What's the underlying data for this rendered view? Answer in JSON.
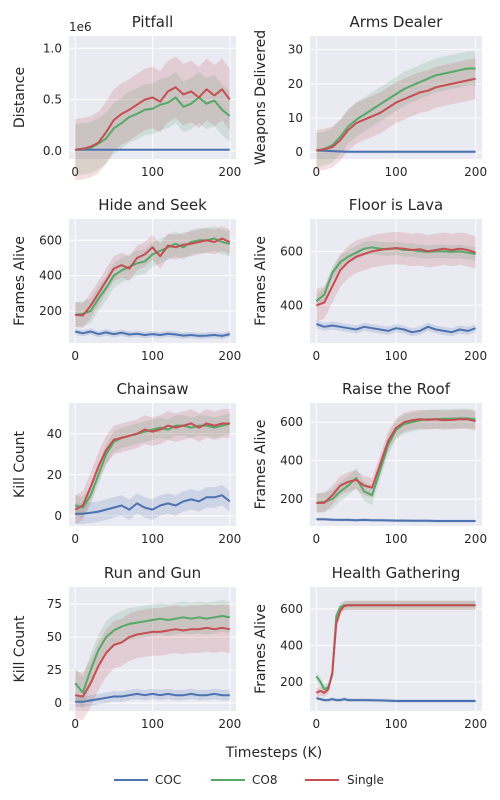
{
  "colors": {
    "COC": "#4c72b0",
    "CO8": "#55a868",
    "Single": "#c44e52",
    "panel_bg": "#eaeaf2",
    "grid": "#ffffff"
  },
  "xlabel": "Timesteps (K)",
  "legend": {
    "placement": "bottom-center",
    "entries": [
      "COC",
      "CO8",
      "Single"
    ]
  },
  "chart_data": [
    {
      "type": "line",
      "title": "Pitfall",
      "ylabel": "Distance",
      "y_scale_label": "1e6",
      "xlim": [
        -8,
        208
      ],
      "ylim": [
        -0.08,
        1.12
      ],
      "xticks": [
        0,
        100,
        200
      ],
      "yticks": [
        0.0,
        0.5,
        1.0
      ],
      "ytick_labels": [
        "0.0",
        "0.5",
        "1.0"
      ],
      "x": [
        0,
        10,
        20,
        30,
        40,
        50,
        60,
        70,
        80,
        90,
        100,
        110,
        120,
        130,
        140,
        150,
        160,
        170,
        180,
        190,
        200
      ],
      "series": [
        {
          "name": "COC",
          "values": [
            0.01,
            0.01,
            0.01,
            0.01,
            0.01,
            0.01,
            0.01,
            0.01,
            0.01,
            0.01,
            0.01,
            0.01,
            0.01,
            0.01,
            0.01,
            0.01,
            0.01,
            0.01,
            0.01,
            0.01,
            0.01
          ],
          "spread": 0.01
        },
        {
          "name": "CO8",
          "values": [
            0.01,
            0.02,
            0.03,
            0.07,
            0.12,
            0.22,
            0.27,
            0.33,
            0.36,
            0.4,
            0.41,
            0.45,
            0.47,
            0.52,
            0.43,
            0.46,
            0.52,
            0.46,
            0.49,
            0.4,
            0.34
          ],
          "spread": 0.25
        },
        {
          "name": "Single",
          "values": [
            0.01,
            0.02,
            0.04,
            0.08,
            0.18,
            0.3,
            0.36,
            0.4,
            0.45,
            0.5,
            0.52,
            0.48,
            0.58,
            0.62,
            0.55,
            0.58,
            0.52,
            0.6,
            0.54,
            0.6,
            0.5
          ],
          "spread": 0.3
        }
      ]
    },
    {
      "type": "line",
      "title": "Arms Dealer",
      "ylabel": "Weapons Delivered",
      "xlim": [
        -8,
        208
      ],
      "ylim": [
        -2,
        34
      ],
      "xticks": [
        0,
        100,
        200
      ],
      "yticks": [
        0,
        10,
        20,
        30
      ],
      "ytick_labels": [
        "0",
        "10",
        "20",
        "30"
      ],
      "x": [
        0,
        10,
        20,
        30,
        40,
        50,
        60,
        70,
        80,
        90,
        100,
        110,
        120,
        130,
        140,
        150,
        160,
        170,
        180,
        190,
        200
      ],
      "series": [
        {
          "name": "COC",
          "values": [
            0.5,
            0.4,
            0.3,
            0.2,
            0.1,
            0.1,
            0.1,
            0.1,
            0.1,
            0.1,
            0.1,
            0.1,
            0.1,
            0.1,
            0.1,
            0.1,
            0.1,
            0.1,
            0.1,
            0.1,
            0.1
          ],
          "spread": 0.4
        },
        {
          "name": "CO8",
          "values": [
            0.5,
            1.0,
            2.0,
            4.5,
            7.5,
            9.5,
            11.0,
            12.5,
            14.0,
            15.5,
            17.0,
            18.5,
            19.5,
            20.5,
            21.5,
            22.5,
            23.0,
            23.5,
            24.0,
            24.5,
            24.5
          ],
          "spread": 5
        },
        {
          "name": "Single",
          "values": [
            0.5,
            0.8,
            1.5,
            3.5,
            6.5,
            8.5,
            9.5,
            10.5,
            11.5,
            13.0,
            14.5,
            15.5,
            16.5,
            17.5,
            18.0,
            19.0,
            19.5,
            20.0,
            20.5,
            21.0,
            21.5
          ],
          "spread": 6
        }
      ]
    },
    {
      "type": "line",
      "title": "Hide and Seek",
      "ylabel": "Frames Alive",
      "xlim": [
        -8,
        208
      ],
      "ylim": [
        20,
        720
      ],
      "xticks": [
        0,
        100,
        200
      ],
      "yticks": [
        200,
        400,
        600
      ],
      "ytick_labels": [
        "200",
        "400",
        "600"
      ],
      "x": [
        0,
        10,
        20,
        30,
        40,
        50,
        60,
        70,
        80,
        90,
        100,
        110,
        120,
        130,
        140,
        150,
        160,
        170,
        180,
        190,
        200
      ],
      "series": [
        {
          "name": "COC",
          "values": [
            85,
            75,
            85,
            70,
            80,
            70,
            78,
            68,
            72,
            65,
            70,
            65,
            72,
            68,
            62,
            65,
            60,
            62,
            65,
            60,
            70
          ],
          "spread": 18
        },
        {
          "name": "CO8",
          "values": [
            180,
            185,
            200,
            270,
            330,
            400,
            430,
            450,
            470,
            480,
            520,
            540,
            560,
            580,
            560,
            590,
            600,
            600,
            610,
            590,
            580
          ],
          "spread": 70
        },
        {
          "name": "Single",
          "values": [
            180,
            175,
            230,
            300,
            370,
            440,
            460,
            440,
            500,
            520,
            560,
            510,
            570,
            560,
            575,
            580,
            590,
            600,
            590,
            610,
            590
          ],
          "spread": 70
        }
      ]
    },
    {
      "type": "line",
      "title": "Floor is Lava",
      "ylabel": "Frames Alive",
      "xlim": [
        -8,
        208
      ],
      "ylim": [
        260,
        720
      ],
      "xticks": [
        0,
        100,
        200
      ],
      "yticks": [
        400,
        600
      ],
      "ytick_labels": [
        "400",
        "600"
      ],
      "x": [
        0,
        10,
        20,
        30,
        40,
        50,
        60,
        70,
        80,
        90,
        100,
        110,
        120,
        130,
        140,
        150,
        160,
        170,
        180,
        190,
        200
      ],
      "series": [
        {
          "name": "COC",
          "values": [
            330,
            320,
            325,
            320,
            315,
            310,
            320,
            315,
            310,
            305,
            315,
            310,
            300,
            305,
            320,
            310,
            305,
            300,
            310,
            305,
            315
          ],
          "spread": 15
        },
        {
          "name": "CO8",
          "values": [
            415,
            440,
            520,
            560,
            580,
            595,
            610,
            615,
            610,
            608,
            612,
            605,
            605,
            600,
            598,
            600,
            600,
            598,
            600,
            595,
            590
          ],
          "spread": 25
        },
        {
          "name": "Single",
          "values": [
            400,
            410,
            470,
            530,
            560,
            580,
            590,
            600,
            605,
            610,
            612,
            610,
            605,
            608,
            600,
            605,
            610,
            605,
            610,
            605,
            595
          ],
          "spread": 60
        }
      ]
    },
    {
      "type": "line",
      "title": "Chainsaw",
      "ylabel": "Kill Count",
      "xlim": [
        -8,
        208
      ],
      "ylim": [
        -5,
        55
      ],
      "xticks": [
        0,
        100,
        200
      ],
      "yticks": [
        0,
        20,
        40
      ],
      "ytick_labels": [
        "0",
        "20",
        "40"
      ],
      "x": [
        0,
        10,
        20,
        30,
        40,
        50,
        60,
        70,
        80,
        90,
        100,
        110,
        120,
        130,
        140,
        150,
        160,
        170,
        180,
        190,
        200
      ],
      "series": [
        {
          "name": "COC",
          "values": [
            1,
            1,
            1.5,
            2,
            3,
            4,
            5,
            3,
            6,
            4,
            3,
            5,
            6,
            5,
            7,
            8,
            7,
            9,
            9,
            10,
            7
          ],
          "spread": 5
        },
        {
          "name": "CO8",
          "values": [
            5,
            4,
            10,
            20,
            30,
            36,
            38,
            39,
            40,
            41,
            42,
            43,
            42,
            44,
            44,
            43,
            44,
            44,
            43,
            44,
            45
          ],
          "spread": 5
        },
        {
          "name": "Single",
          "values": [
            3,
            5,
            14,
            24,
            32,
            37,
            38,
            39,
            40,
            42,
            41,
            42,
            44,
            43,
            44,
            45,
            43,
            45,
            44,
            45,
            45
          ],
          "spread": 7
        }
      ]
    },
    {
      "type": "line",
      "title": "Raise the Roof",
      "ylabel": "Frames Alive",
      "xlim": [
        -8,
        208
      ],
      "ylim": [
        60,
        700
      ],
      "xticks": [
        0,
        100,
        200
      ],
      "yticks": [
        200,
        400,
        600
      ],
      "ytick_labels": [
        "200",
        "400",
        "600"
      ],
      "x": [
        0,
        10,
        20,
        30,
        40,
        50,
        60,
        70,
        80,
        90,
        100,
        110,
        120,
        130,
        140,
        150,
        160,
        170,
        180,
        190,
        200
      ],
      "series": [
        {
          "name": "COC",
          "values": [
            95,
            95,
            93,
            92,
            92,
            90,
            92,
            90,
            90,
            89,
            88,
            88,
            87,
            87,
            87,
            86,
            86,
            86,
            86,
            86,
            86
          ],
          "spread": 8
        },
        {
          "name": "CO8",
          "values": [
            180,
            185,
            200,
            240,
            270,
            310,
            240,
            220,
            350,
            480,
            560,
            590,
            600,
            610,
            615,
            615,
            618,
            618,
            620,
            620,
            615
          ],
          "spread": 50
        },
        {
          "name": "Single",
          "values": [
            180,
            180,
            220,
            270,
            290,
            300,
            270,
            260,
            380,
            500,
            570,
            600,
            610,
            615,
            612,
            615,
            610,
            612,
            615,
            615,
            605
          ],
          "spread": 50
        }
      ]
    },
    {
      "type": "line",
      "title": "Run and Gun",
      "ylabel": "Kill Count",
      "xlim": [
        -8,
        208
      ],
      "ylim": [
        -6,
        88
      ],
      "xticks": [
        0,
        100,
        200
      ],
      "yticks": [
        0,
        25,
        50,
        75
      ],
      "ytick_labels": [
        "0",
        "25",
        "50",
        "75"
      ],
      "x": [
        0,
        10,
        20,
        30,
        40,
        50,
        60,
        70,
        80,
        90,
        100,
        110,
        120,
        130,
        140,
        150,
        160,
        170,
        180,
        190,
        200
      ],
      "series": [
        {
          "name": "COC",
          "values": [
            1,
            1,
            2,
            3,
            4,
            5,
            5,
            6,
            7,
            6,
            7,
            6,
            7,
            6,
            6,
            7,
            6,
            6,
            7,
            6,
            6
          ],
          "spread": 4
        },
        {
          "name": "CO8",
          "values": [
            15,
            8,
            25,
            40,
            50,
            55,
            58,
            60,
            61,
            62,
            63,
            64,
            63,
            64,
            65,
            64,
            65,
            64,
            65,
            66,
            65
          ],
          "spread": 12
        },
        {
          "name": "Single",
          "values": [
            6,
            5,
            15,
            28,
            38,
            44,
            46,
            50,
            52,
            53,
            54,
            54,
            55,
            56,
            55,
            56,
            56,
            57,
            56,
            57,
            56
          ],
          "spread": 18
        }
      ]
    },
    {
      "type": "line",
      "title": "Health Gathering",
      "ylabel": "Frames Alive",
      "xlim": [
        -8,
        208
      ],
      "ylim": [
        40,
        720
      ],
      "xticks": [
        0,
        100,
        200
      ],
      "yticks": [
        200,
        400,
        600
      ],
      "ytick_labels": [
        "200",
        "400",
        "600"
      ],
      "x": [
        0,
        5,
        10,
        15,
        20,
        25,
        30,
        35,
        40,
        50,
        60,
        80,
        100,
        120,
        140,
        160,
        180,
        200
      ],
      "series": [
        {
          "name": "COC",
          "values": [
            110,
            105,
            100,
            100,
            105,
            100,
            100,
            105,
            100,
            100,
            100,
            98,
            95,
            95,
            95,
            95,
            95,
            95
          ],
          "spread": 10
        },
        {
          "name": "CO8",
          "values": [
            230,
            200,
            160,
            170,
            240,
            560,
            610,
            620,
            620,
            620,
            620,
            620,
            620,
            620,
            620,
            620,
            620,
            620
          ],
          "spread": 25
        },
        {
          "name": "Single",
          "values": [
            140,
            150,
            140,
            160,
            250,
            520,
            590,
            615,
            620,
            620,
            620,
            620,
            620,
            620,
            620,
            620,
            620,
            620
          ],
          "spread": 25
        }
      ]
    }
  ]
}
